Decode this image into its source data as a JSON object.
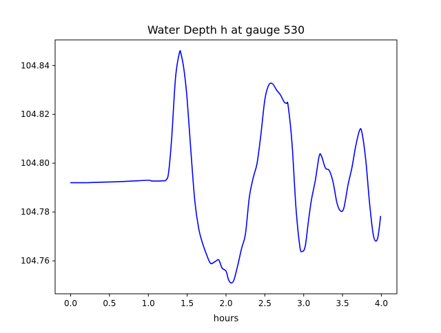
{
  "chart_data": {
    "type": "line",
    "title": "Water Depth h at gauge 530",
    "xlabel": "hours",
    "ylabel": "",
    "xlim": [
      -0.2,
      4.2
    ],
    "ylim": [
      104.7465,
      104.8505
    ],
    "xticks": [
      0.0,
      0.5,
      1.0,
      1.5,
      2.0,
      2.5,
      3.0,
      3.5,
      4.0
    ],
    "xtick_labels": [
      "0.0",
      "0.5",
      "1.0",
      "1.5",
      "2.0",
      "2.5",
      "3.0",
      "3.5",
      "4.0"
    ],
    "yticks": [
      104.76,
      104.78,
      104.8,
      104.82,
      104.84
    ],
    "ytick_labels": [
      "104.76",
      "104.78",
      "104.80",
      "104.82",
      "104.84"
    ],
    "grid": false,
    "series": [
      {
        "color": "#0000ff",
        "x": [
          0.0,
          0.2,
          0.4,
          0.6,
          0.8,
          1.0,
          1.05,
          1.2,
          1.23,
          1.26,
          1.3,
          1.35,
          1.4,
          1.42,
          1.46,
          1.5,
          1.55,
          1.6,
          1.65,
          1.7,
          1.75,
          1.8,
          1.85,
          1.9,
          1.92,
          1.95,
          2.0,
          2.03,
          2.06,
          2.1,
          2.15,
          2.2,
          2.25,
          2.3,
          2.35,
          2.4,
          2.45,
          2.5,
          2.55,
          2.6,
          2.65,
          2.7,
          2.75,
          2.78,
          2.8,
          2.85,
          2.9,
          2.95,
          2.98,
          3.02,
          3.06,
          3.1,
          3.15,
          3.2,
          3.23,
          3.28,
          3.33,
          3.38,
          3.43,
          3.48,
          3.52,
          3.57,
          3.62,
          3.67,
          3.72,
          3.75,
          3.8,
          3.85,
          3.9,
          3.95,
          3.99
        ],
        "y": [
          104.792,
          104.792,
          104.7922,
          104.7924,
          104.7927,
          104.793,
          104.7927,
          104.7928,
          104.7932,
          104.796,
          104.81,
          104.835,
          104.8452,
          104.8448,
          104.838,
          104.826,
          104.804,
          104.784,
          104.773,
          104.767,
          104.7625,
          104.759,
          104.7595,
          104.7605,
          104.7595,
          104.757,
          104.7558,
          104.7525,
          104.751,
          104.752,
          104.758,
          104.765,
          104.771,
          104.786,
          104.794,
          104.8,
          104.812,
          104.826,
          104.832,
          104.8325,
          104.83,
          104.828,
          104.825,
          104.8245,
          104.8235,
          104.808,
          104.782,
          104.766,
          104.7638,
          104.766,
          104.776,
          104.785,
          104.793,
          104.803,
          104.8028,
          104.798,
          104.797,
          104.792,
          104.7835,
          104.7803,
          104.782,
          104.791,
          104.798,
          104.807,
          104.8135,
          104.8125,
          104.801,
          104.783,
          104.77,
          104.769,
          104.7782
        ]
      }
    ]
  }
}
